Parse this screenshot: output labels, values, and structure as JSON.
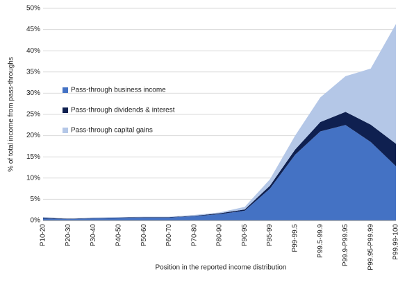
{
  "chart_data": {
    "type": "stacked_area",
    "y_label": "% of total income from pass-throughs",
    "x_label": "Position in the reported income distribution",
    "categories": [
      "P10-20",
      "P20-30",
      "P30-40",
      "P40-50",
      "P50-60",
      "P60-70",
      "P70-80",
      "P80-90",
      "P90-95",
      "P95-99",
      "P99-99.5",
      "P99.5-99.9",
      "P99.9-P99.95",
      "P99.95-P99.99",
      "P99.99-100"
    ],
    "series": [
      {
        "name": "Pass-through business income",
        "color": "#4472c4",
        "values": [
          0.5,
          0.3,
          0.5,
          0.6,
          0.7,
          0.7,
          1.0,
          1.5,
          2.3,
          7.5,
          15.5,
          21,
          22.5,
          18.5,
          12.8
        ]
      },
      {
        "name": "Pass-through dividends & interest",
        "color": "#0f2050",
        "values": [
          0.2,
          0.1,
          0.1,
          0.1,
          0.1,
          0.1,
          0.1,
          0.2,
          0.3,
          0.7,
          1.2,
          2.2,
          3.1,
          4.1,
          5.3
        ]
      },
      {
        "name": "Pass-through capital gains",
        "color": "#b4c7e7",
        "values": [
          0.1,
          0.1,
          0.1,
          0.1,
          0.1,
          0.1,
          0.2,
          0.2,
          0.6,
          1.5,
          3.3,
          5.8,
          8.4,
          13.2,
          28.2
        ]
      }
    ],
    "ylim": [
      0,
      50
    ],
    "yticks": [
      {
        "value": 0,
        "label": "0%"
      },
      {
        "value": 5,
        "label": "5%"
      },
      {
        "value": 10,
        "label": "10%"
      },
      {
        "value": 15,
        "label": "15%"
      },
      {
        "value": 20,
        "label": "20%"
      },
      {
        "value": 25,
        "label": "25%"
      },
      {
        "value": 30,
        "label": "30%"
      },
      {
        "value": 35,
        "label": "35%"
      },
      {
        "value": 40,
        "label": "40%"
      },
      {
        "value": 45,
        "label": "45%"
      },
      {
        "value": 50,
        "label": "50%"
      }
    ],
    "grid": true,
    "legend": "left"
  }
}
